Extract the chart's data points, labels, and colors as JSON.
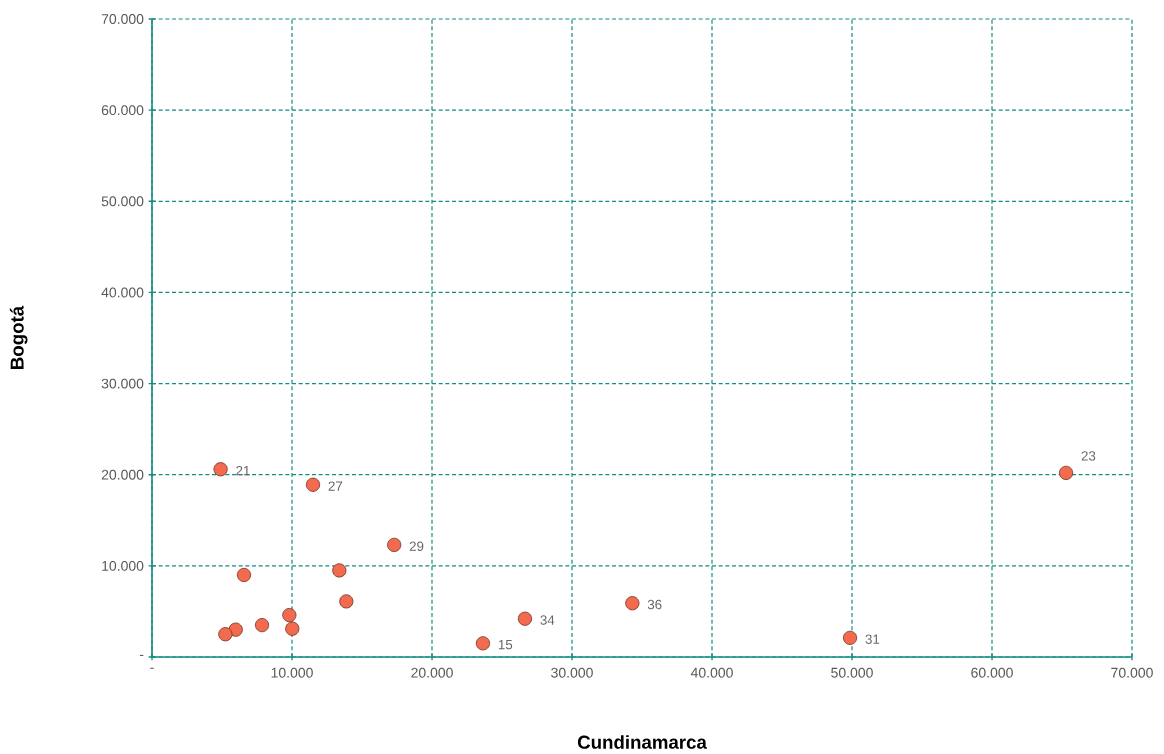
{
  "chart_data": {
    "type": "scatter",
    "xlabel": "Cundinamarca",
    "ylabel": "Bogotá",
    "x": [
      4900,
      11500,
      17300,
      6570,
      13380,
      13880,
      9810,
      10020,
      7860,
      5980,
      5240,
      23640,
      26640,
      34310,
      49860,
      65290
    ],
    "values": [
      20600,
      18900,
      12300,
      9000,
      9500,
      6100,
      4600,
      3100,
      3500,
      3000,
      2500,
      1500,
      4200,
      5900,
      2100,
      20200
    ],
    "color": "#f26b4f",
    "marker": "circle",
    "grid": true,
    "xlim": [
      0,
      70000
    ],
    "ylim": [
      0,
      70000
    ],
    "xticks": [
      {
        "value": 0,
        "label": "-"
      },
      {
        "value": 10000,
        "label": "10.000"
      },
      {
        "value": 20000,
        "label": "20.000"
      },
      {
        "value": 30000,
        "label": "30.000"
      },
      {
        "value": 40000,
        "label": "40.000"
      },
      {
        "value": 50000,
        "label": "50.000"
      },
      {
        "value": 60000,
        "label": "60.000"
      },
      {
        "value": 70000,
        "label": "70.000"
      }
    ],
    "yticks": [
      {
        "value": 0,
        "label": "-"
      },
      {
        "value": 10000,
        "label": "10.000"
      },
      {
        "value": 20000,
        "label": "20.000"
      },
      {
        "value": 30000,
        "label": "30.000"
      },
      {
        "value": 40000,
        "label": "40.000"
      },
      {
        "value": 50000,
        "label": "50.000"
      },
      {
        "value": 60000,
        "label": "60.000"
      },
      {
        "value": 70000,
        "label": "70.000"
      }
    ],
    "annotations": [
      {
        "text": "21",
        "x": 4900,
        "y": 20600
      },
      {
        "text": "27",
        "x": 11500,
        "y": 18900
      },
      {
        "text": "29",
        "x": 17300,
        "y": 12300
      },
      {
        "text": "15",
        "x": 23640,
        "y": 1500
      },
      {
        "text": "34",
        "x": 26640,
        "y": 4200
      },
      {
        "text": "36",
        "x": 34310,
        "y": 5900
      },
      {
        "text": "31",
        "x": 49860,
        "y": 2100
      },
      {
        "text": "23",
        "x": 65290,
        "y": 20200
      }
    ]
  }
}
